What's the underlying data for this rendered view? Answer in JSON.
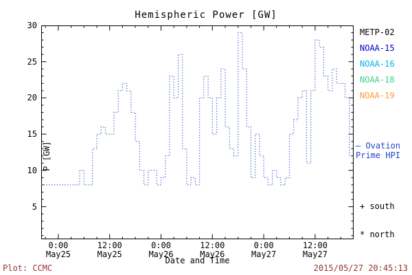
{
  "title": "Hemispheric Power [GW]",
  "axes": {
    "ylabel": "P [GW]",
    "xlabel": "Date and Time",
    "y_ticks": [
      5,
      10,
      15,
      20,
      25,
      30
    ],
    "x_ticks": [
      {
        "time": "0:00",
        "date": "May25",
        "t": 0
      },
      {
        "time": "12:00",
        "date": "May25",
        "t": 12
      },
      {
        "time": "0:00",
        "date": "May26",
        "t": 24
      },
      {
        "time": "12:00",
        "date": "May26",
        "t": 36
      },
      {
        "time": "0:00",
        "date": "May27",
        "t": 48
      },
      {
        "time": "12:00",
        "date": "May27",
        "t": 60
      }
    ]
  },
  "legend": {
    "satellites": [
      {
        "label": "METP-02",
        "color": "#000000"
      },
      {
        "label": "NOAA-15",
        "color": "#0000d0"
      },
      {
        "label": "NOAA-16",
        "color": "#00b4e4"
      },
      {
        "label": "NOAA-18",
        "color": "#3fd08f"
      },
      {
        "label": "NOAA-19",
        "color": "#ff9a3c"
      }
    ],
    "ovation_line1": "— Ovation",
    "ovation_line2": "Prime HPI",
    "ovation_color": "#2244cc",
    "south": "+ south",
    "north": "* north"
  },
  "footer": {
    "left": "Plot: CCMC",
    "right": "2015/05/27 20:45:13",
    "color": "#993333"
  },
  "chart_data": {
    "type": "line",
    "style": "dotted-step",
    "title": "Hemispheric Power [GW]",
    "xlabel": "Date and Time",
    "ylabel": "P [GW]",
    "series_name": "Ovation Prime HPI",
    "color": "#2b50c8",
    "x_unit": "hours from 2015-05-25 00:00",
    "xlim_hours": [
      -4,
      69
    ],
    "ylim": [
      0.5,
      30
    ],
    "x": [
      -4,
      -3,
      -2,
      -1,
      0,
      1,
      2,
      3,
      4,
      5,
      6,
      7,
      8,
      9,
      10,
      11,
      12,
      13,
      14,
      15,
      16,
      17,
      18,
      19,
      20,
      21,
      22,
      23,
      24,
      25,
      26,
      27,
      28,
      29,
      30,
      31,
      32,
      33,
      34,
      35,
      36,
      37,
      38,
      39,
      40,
      41,
      42,
      43,
      44,
      45,
      46,
      47,
      48,
      49,
      50,
      51,
      52,
      53,
      54,
      55,
      56,
      57,
      58,
      59,
      60,
      61,
      62,
      63,
      64,
      65,
      66,
      67,
      68
    ],
    "y": [
      8,
      8,
      8,
      8,
      8,
      8,
      8,
      8,
      8,
      10,
      8,
      8,
      13,
      15,
      16,
      15,
      15,
      18,
      21,
      22,
      21,
      18,
      14,
      10,
      8,
      10,
      10,
      8,
      9,
      12,
      23,
      20,
      26,
      13,
      8,
      9,
      8,
      20,
      23,
      20,
      15,
      20,
      24,
      16,
      13,
      12,
      29,
      24,
      16,
      9,
      15,
      12,
      9,
      8,
      10,
      9,
      8,
      9,
      15,
      17,
      20,
      21,
      11,
      21,
      28,
      27,
      23,
      21,
      24,
      22,
      22,
      20,
      12
    ]
  }
}
